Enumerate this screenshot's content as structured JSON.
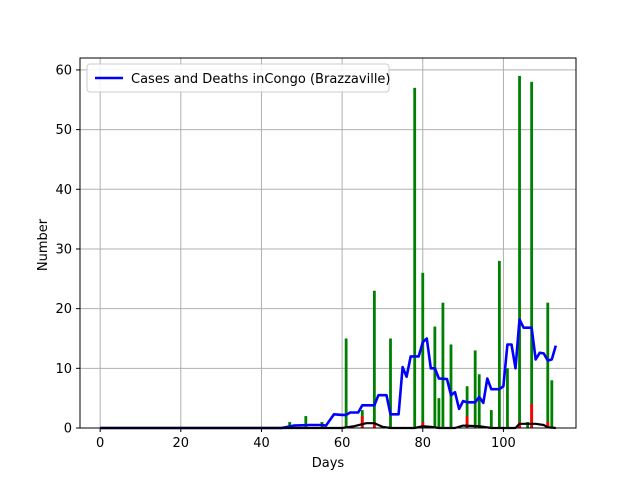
{
  "chart_data": {
    "type": "bar",
    "title": "",
    "xlabel": "Days",
    "ylabel": "Number",
    "xlim": [
      -5,
      118
    ],
    "ylim": [
      0,
      62
    ],
    "xticks": [
      0,
      20,
      40,
      60,
      80,
      100
    ],
    "yticks": [
      0,
      10,
      20,
      30,
      40,
      50,
      60
    ],
    "grid": true,
    "legend": {
      "placement": "top-left",
      "label": "Cases and Deaths inCongo (Brazzaville)"
    },
    "colors": {
      "cases_bars": "#008000",
      "deaths_bars": "#ff0000",
      "average_line": "#0000ff",
      "deaths_line": "#000000",
      "grid": "#b0b0b0"
    },
    "series": [
      {
        "kind": "bar",
        "values_by_day": [
          [
            47,
            1
          ],
          [
            51,
            2
          ],
          [
            55,
            1
          ],
          [
            61,
            15
          ],
          [
            65,
            3
          ],
          [
            68,
            23
          ],
          [
            72,
            15
          ],
          [
            78,
            57
          ],
          [
            80,
            26
          ],
          [
            83,
            17
          ],
          [
            84,
            5
          ],
          [
            85,
            21
          ],
          [
            87,
            14
          ],
          [
            91,
            7
          ],
          [
            93,
            13
          ],
          [
            94,
            9
          ],
          [
            97,
            3
          ],
          [
            99,
            28
          ],
          [
            101,
            10
          ],
          [
            104,
            59
          ],
          [
            106,
            1
          ],
          [
            107,
            58
          ],
          [
            111,
            21
          ],
          [
            112,
            8
          ]
        ]
      },
      {
        "kind": "bar",
        "values_by_day": [
          [
            65,
            2
          ],
          [
            68,
            1
          ],
          [
            80,
            1
          ],
          [
            91,
            2
          ],
          [
            104,
            1
          ],
          [
            107,
            4
          ],
          [
            111,
            1
          ]
        ]
      },
      {
        "kind": "line",
        "points": [
          [
            0,
            0
          ],
          [
            12,
            0
          ],
          [
            24,
            0
          ],
          [
            36,
            0
          ],
          [
            45,
            0
          ],
          [
            48,
            0.4
          ],
          [
            52,
            0.5
          ],
          [
            55,
            0.5
          ],
          [
            56,
            0.4
          ],
          [
            58,
            2.3
          ],
          [
            60,
            2.2
          ],
          [
            61,
            2.2
          ],
          [
            62,
            2.6
          ],
          [
            64,
            2.6
          ],
          [
            65,
            3.8
          ],
          [
            68,
            3.8
          ],
          [
            69,
            5.5
          ],
          [
            71,
            5.5
          ],
          [
            72,
            2.3
          ],
          [
            74,
            2.3
          ],
          [
            75,
            10.2
          ],
          [
            76,
            8.6
          ],
          [
            77,
            12
          ],
          [
            79,
            12
          ],
          [
            80,
            14.4
          ],
          [
            81,
            15
          ],
          [
            82,
            10
          ],
          [
            83,
            10
          ],
          [
            84,
            8.3
          ],
          [
            86,
            8.2
          ],
          [
            87,
            5.5
          ],
          [
            88,
            6
          ],
          [
            89,
            3.2
          ],
          [
            90,
            4.5
          ],
          [
            91,
            4.3
          ],
          [
            93,
            4.3
          ],
          [
            94,
            5.2
          ],
          [
            95,
            4.2
          ],
          [
            96,
            8.3
          ],
          [
            97,
            6.5
          ],
          [
            99,
            6.5
          ],
          [
            100,
            7
          ],
          [
            101,
            14
          ],
          [
            102,
            14
          ],
          [
            103,
            10
          ],
          [
            104,
            18.2
          ],
          [
            105,
            16.8
          ],
          [
            107,
            16.8
          ],
          [
            108,
            11.5
          ],
          [
            109,
            12.6
          ],
          [
            110,
            12.5
          ],
          [
            111,
            11.3
          ],
          [
            112,
            11.5
          ],
          [
            113,
            13.8
          ]
        ]
      },
      {
        "kind": "line",
        "points": [
          [
            0,
            0
          ],
          [
            60,
            0
          ],
          [
            63,
            0.3
          ],
          [
            66,
            0.8
          ],
          [
            68,
            0.8
          ],
          [
            70,
            0.2
          ],
          [
            72,
            0
          ],
          [
            78,
            0
          ],
          [
            80,
            0.3
          ],
          [
            82,
            0.2
          ],
          [
            84,
            0
          ],
          [
            88,
            0
          ],
          [
            90,
            0.4
          ],
          [
            94,
            0.3
          ],
          [
            97,
            0
          ],
          [
            103,
            0
          ],
          [
            104,
            0.7
          ],
          [
            108,
            0.7
          ],
          [
            110,
            0.5
          ],
          [
            111,
            0.1
          ],
          [
            113,
            0
          ]
        ]
      }
    ]
  }
}
